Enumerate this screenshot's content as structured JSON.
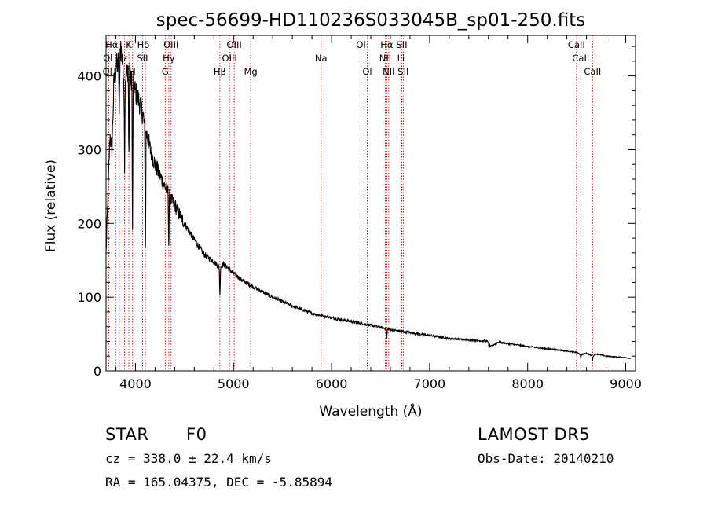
{
  "chart_data": {
    "type": "line",
    "title": "spec-56699-HD110236S033045B_sp01-250.fits",
    "xlabel": "Wavelength (Å)",
    "ylabel": "Flux (relative)",
    "xlim": [
      3700,
      9100
    ],
    "ylim": [
      0,
      455
    ],
    "x_ticks": [
      4000,
      5000,
      6000,
      7000,
      8000,
      9000
    ],
    "y_ticks": [
      0,
      100,
      200,
      300,
      400
    ],
    "grid": false,
    "series": [
      {
        "x": [
          3700,
          3720,
          3740,
          3760,
          3780,
          3800,
          3830,
          3850,
          3870,
          3890,
          3910,
          3935,
          3950,
          3960,
          3970,
          3985,
          4000,
          4040,
          4080,
          4101,
          4120,
          4150,
          4200,
          4250,
          4300,
          4340,
          4360,
          4400,
          4450,
          4500,
          4600,
          4700,
          4800,
          4861,
          4900,
          5000,
          5100,
          5200,
          5400,
          5600,
          5800,
          6000,
          6200,
          6400,
          6563,
          6600,
          6800,
          7000,
          7200,
          7400,
          7600,
          7620,
          7700,
          7800,
          8000,
          8200,
          8400,
          8500,
          8542,
          8600,
          8662,
          8700,
          8800,
          8900,
          9000,
          9050
        ],
        "y": [
          160,
          240,
          320,
          300,
          390,
          410,
          420,
          440,
          415,
          395,
          400,
          420,
          390,
          400,
          400,
          390,
          378,
          365,
          345,
          320,
          320,
          300,
          280,
          265,
          250,
          240,
          232,
          225,
          212,
          200,
          178,
          158,
          148,
          140,
          145,
          132,
          122,
          114,
          100,
          88,
          78,
          72,
          67,
          62,
          57,
          56,
          52,
          48,
          44,
          42,
          40,
          33,
          39,
          37,
          33,
          30,
          27,
          25,
          22,
          24,
          20,
          23,
          20,
          19,
          18,
          17
        ]
      }
    ],
    "absorption_dips": [
      {
        "x": 3835,
        "depth": 90
      },
      {
        "x": 3889,
        "depth": 110
      },
      {
        "x": 3933,
        "depth": 150
      },
      {
        "x": 3970,
        "depth": 220
      },
      {
        "x": 4101,
        "depth": 180
      },
      {
        "x": 4340,
        "depth": 80
      },
      {
        "x": 4861,
        "depth": 40
      },
      {
        "x": 6563,
        "depth": 15
      },
      {
        "x": 7605,
        "depth": 9
      },
      {
        "x": 8542,
        "depth": 6
      },
      {
        "x": 8662,
        "depth": 6
      }
    ],
    "line_markers": [
      {
        "x": 3727
      },
      {
        "x": 3798
      },
      {
        "x": 3835
      },
      {
        "x": 3889
      },
      {
        "x": 3933
      },
      {
        "x": 3970
      },
      {
        "x": 4072
      },
      {
        "x": 4101
      },
      {
        "x": 4304
      },
      {
        "x": 4340
      },
      {
        "x": 4363
      },
      {
        "x": 4861
      },
      {
        "x": 4959
      },
      {
        "x": 5007
      },
      {
        "x": 5175
      },
      {
        "x": 5893
      },
      {
        "x": 6300
      },
      {
        "x": 6364
      },
      {
        "x": 6548
      },
      {
        "x": 6563
      },
      {
        "x": 6583
      },
      {
        "x": 6708
      },
      {
        "x": 6716
      },
      {
        "x": 6731
      },
      {
        "x": 8498
      },
      {
        "x": 8542
      },
      {
        "x": 8662
      }
    ],
    "line_labels": [
      {
        "text": "Hα",
        "x": 3758,
        "row": 0
      },
      {
        "text": "Ol",
        "x": 3718,
        "row": 1
      },
      {
        "text": "Ol",
        "x": 3714,
        "row": 2
      },
      {
        "text": "K",
        "x": 3933,
        "row": 0
      },
      {
        "text": "Hε",
        "x": 3869,
        "row": 1
      },
      {
        "text": "H",
        "x": 3968,
        "row": 2
      },
      {
        "text": "Hδ",
        "x": 4080,
        "row": 0
      },
      {
        "text": "SII",
        "x": 4072,
        "row": 1
      },
      {
        "text": "OIII",
        "x": 4363,
        "row": 0
      },
      {
        "text": "Hγ",
        "x": 4340,
        "row": 1
      },
      {
        "text": "G",
        "x": 4304,
        "row": 2
      },
      {
        "text": "OIII",
        "x": 5007,
        "row": 0
      },
      {
        "text": "OIII",
        "x": 4959,
        "row": 1
      },
      {
        "text": "Hβ",
        "x": 4861,
        "row": 2
      },
      {
        "text": "Mg",
        "x": 5175,
        "row": 2
      },
      {
        "text": "Na",
        "x": 5893,
        "row": 1
      },
      {
        "text": "Ol",
        "x": 6300,
        "row": 0
      },
      {
        "text": "Ol",
        "x": 6364,
        "row": 2
      },
      {
        "text": "Hα",
        "x": 6563,
        "row": 0
      },
      {
        "text": "SII",
        "x": 6716,
        "row": 0
      },
      {
        "text": "NII",
        "x": 6548,
        "row": 1
      },
      {
        "text": "Li",
        "x": 6708,
        "row": 1
      },
      {
        "text": "NII",
        "x": 6583,
        "row": 2
      },
      {
        "text": "SII",
        "x": 6731,
        "row": 2
      },
      {
        "text": "CaII",
        "x": 8498,
        "row": 0
      },
      {
        "text": "CaII",
        "x": 8542,
        "row": 1
      },
      {
        "text": "CaII",
        "x": 8662,
        "row": 2
      }
    ],
    "colors": {
      "spectrum": "#000000",
      "markers": "#cc0000"
    }
  },
  "info": {
    "object_type": "STAR",
    "subclass": "F0",
    "survey": "LAMOST DR5",
    "cz": "cz = 338.0 ± 22.4 km/s",
    "obs_date": "Obs-Date: 20140210",
    "coords": "RA = 165.04375, DEC =  -5.85894"
  }
}
